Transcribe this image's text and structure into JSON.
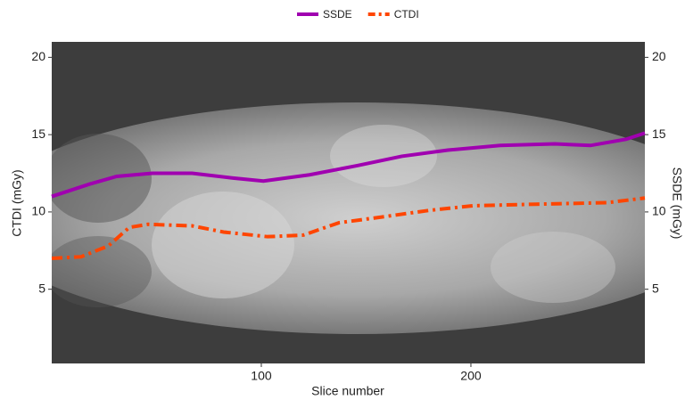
{
  "chart_data": {
    "type": "line",
    "xlabel": "Slice number",
    "ylabel": "CTDI (mGy)",
    "y2label": "SSDE (mGy)",
    "xlim": [
      0,
      283
    ],
    "xticks": [
      100,
      200
    ],
    "ylim": [
      0.2,
      21
    ],
    "yticks": [
      5,
      10,
      15,
      20
    ],
    "y2lim": [
      0.2,
      21
    ],
    "y2ticks": [
      5,
      10,
      15,
      20
    ],
    "legend": "top",
    "series": [
      {
        "name": "SSDE",
        "color": "#a000b0",
        "style": "solid",
        "axis": "y2",
        "x": [
          0,
          18,
          31,
          48,
          67,
          86,
          101,
          123,
          146,
          167,
          189,
          214,
          240,
          257,
          274,
          283
        ],
        "values": [
          11.0,
          11.8,
          12.3,
          12.5,
          12.5,
          12.2,
          12.0,
          12.4,
          13.0,
          13.6,
          14.0,
          14.3,
          14.4,
          14.3,
          14.7,
          15.1
        ]
      },
      {
        "name": "CTDI",
        "color": "#ff4500",
        "style": "dashdot",
        "x": [
          0,
          14,
          27,
          37,
          46,
          67,
          82,
          103,
          120,
          137,
          159,
          180,
          201,
          231,
          265,
          283
        ],
        "values": [
          7.0,
          7.1,
          7.8,
          9.0,
          9.2,
          9.1,
          8.7,
          8.4,
          8.5,
          9.3,
          9.7,
          10.1,
          10.4,
          10.5,
          10.6,
          10.9
        ]
      }
    ]
  }
}
